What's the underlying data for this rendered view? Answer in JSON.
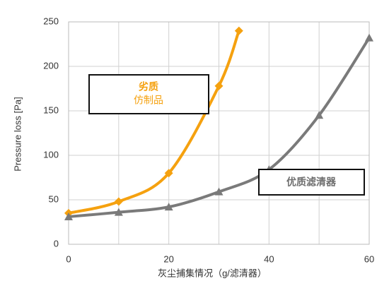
{
  "chart_data": {
    "type": "line",
    "x_label": "灰尘捕集情况（g/滤清器）",
    "y_label": "Pressure loss  [Pa]",
    "xlim": [
      0,
      60
    ],
    "xticks": [
      0,
      20,
      40,
      60
    ],
    "xgrid": [
      0,
      10,
      20,
      30,
      40,
      50,
      60
    ],
    "ylim": [
      0,
      250
    ],
    "yticks": [
      0,
      50,
      100,
      150,
      200,
      250
    ],
    "grid": true,
    "series": [
      {
        "color": "#f5a10f",
        "marker": "diamond",
        "x": [
          0,
          10,
          20,
          30,
          34
        ],
        "values": [
          35,
          48,
          80,
          178,
          240
        ]
      },
      {
        "color": "#7a7a7a",
        "marker": "triangle",
        "x": [
          0,
          10,
          20,
          30,
          40,
          50,
          60
        ],
        "values": [
          31,
          36,
          42,
          59,
          84,
          145,
          232
        ]
      }
    ],
    "annotations": [
      {
        "lines": [
          "劣质",
          "仿制品"
        ],
        "color": "#f5a10f"
      },
      {
        "lines": [
          "优质滤清器"
        ],
        "color": "#6e6e6e"
      }
    ]
  }
}
